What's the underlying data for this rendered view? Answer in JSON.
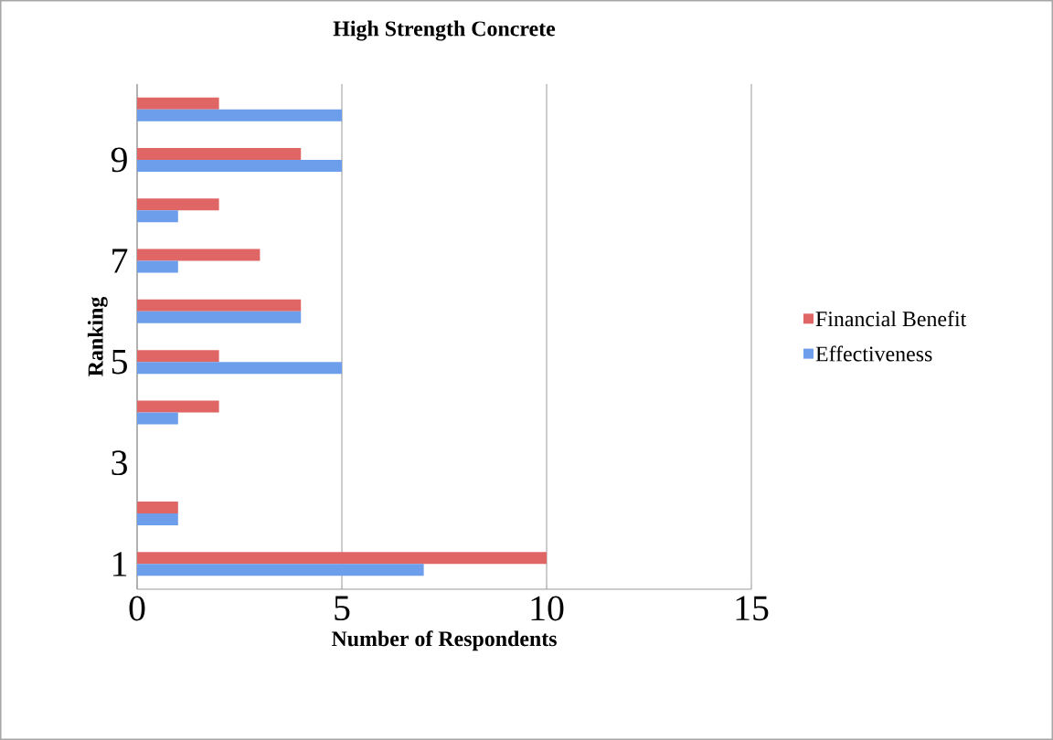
{
  "chart_data": {
    "type": "bar",
    "orientation": "horizontal",
    "title": "High Strength Concrete",
    "xlabel": "Number of Respondents",
    "ylabel": "Ranking",
    "categories": [
      null,
      "9",
      null,
      "7",
      null,
      "5",
      null,
      "3",
      null,
      "1"
    ],
    "series": [
      {
        "name": "Financial Benefit",
        "color": "#e06666",
        "values": [
          2,
          4,
          2,
          3,
          4,
          2,
          2,
          null,
          1,
          10
        ]
      },
      {
        "name": "Effectiveness",
        "color": "#6d9eeb",
        "values": [
          5,
          5,
          1,
          1,
          4,
          5,
          1,
          null,
          1,
          7
        ]
      }
    ],
    "xlim": [
      0,
      15
    ],
    "xticks": [
      0,
      5,
      10,
      15
    ],
    "grid": "x",
    "legend": "right"
  }
}
